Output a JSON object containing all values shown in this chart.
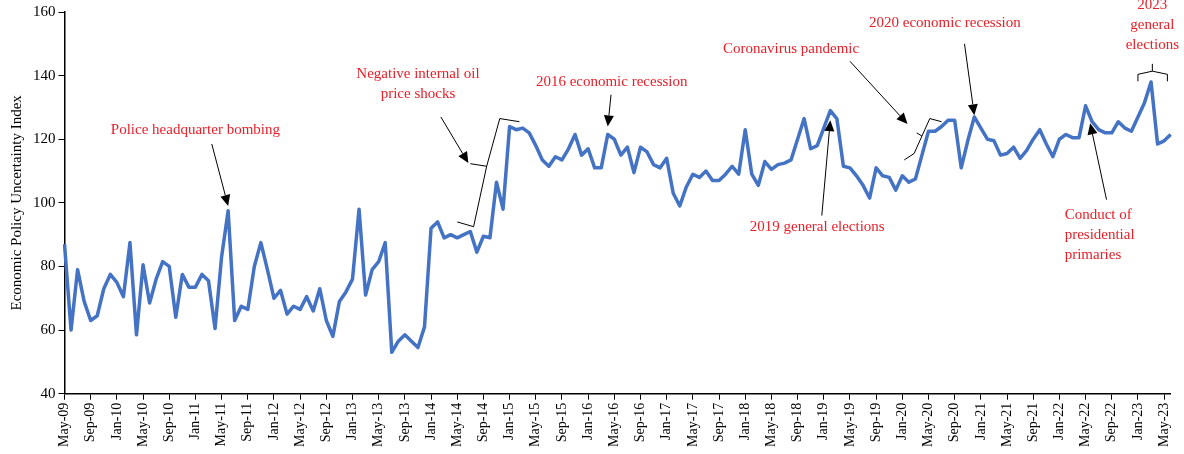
{
  "chart_data": {
    "type": "line",
    "ylabel": "Economic Policy Uncertainty Index",
    "categories": [
      "May-09",
      null,
      null,
      null,
      "Sep-09",
      null,
      null,
      null,
      "Jan-10",
      null,
      null,
      null,
      "May-10",
      null,
      null,
      null,
      "Sep-10",
      null,
      null,
      null,
      "Jan-11",
      null,
      null,
      null,
      "May-11",
      null,
      null,
      null,
      "Sep-11",
      null,
      null,
      null,
      "Jan-12",
      null,
      null,
      null,
      "May-12",
      null,
      null,
      null,
      "Sep-12",
      null,
      null,
      null,
      "Jan-13",
      null,
      null,
      null,
      "May-13",
      null,
      null,
      null,
      "Sep-13",
      null,
      null,
      null,
      "Jan-14",
      null,
      null,
      null,
      "May-14",
      null,
      null,
      null,
      "Sep-14",
      null,
      null,
      null,
      "Jan-15",
      null,
      null,
      null,
      "May-15",
      null,
      null,
      null,
      "Sep-15",
      null,
      null,
      null,
      "Jan-16",
      null,
      null,
      null,
      "May-16",
      null,
      null,
      null,
      "Sep-16",
      null,
      null,
      null,
      "Jan-17",
      null,
      null,
      null,
      "May-17",
      null,
      null,
      null,
      "Sep-17",
      null,
      null,
      null,
      "Jan-18",
      null,
      null,
      null,
      "May-18",
      null,
      null,
      null,
      "Sep-18",
      null,
      null,
      null,
      "Jan-19",
      null,
      null,
      null,
      "May-19",
      null,
      null,
      null,
      "Sep-19",
      null,
      null,
      null,
      "Jan-20",
      null,
      null,
      null,
      "May-20",
      null,
      null,
      null,
      "Sep-20",
      null,
      null,
      null,
      "Jan-21",
      null,
      null,
      null,
      "May-21",
      null,
      null,
      null,
      "Sep-21",
      null,
      null,
      null,
      "Jan-22",
      null,
      null,
      null,
      "May-22",
      null,
      null,
      null,
      "Sep-22",
      null,
      null,
      null,
      "Jan-23",
      null,
      null,
      null,
      "May-23",
      null
    ],
    "series": [
      {
        "color": "#4472c4",
        "values": [
          87,
          60,
          79,
          69,
          63,
          64.5,
          73,
          77.5,
          75,
          70.5,
          87.5,
          58.5,
          80.5,
          68.5,
          76,
          81.5,
          80,
          64,
          77.5,
          73.5,
          73.5,
          77.5,
          75.5,
          60.5,
          83,
          97.5,
          63,
          67.5,
          66.5,
          80,
          87.5,
          79,
          70,
          72.5,
          65,
          67.5,
          66.5,
          70.5,
          66,
          73,
          63,
          58,
          69,
          72,
          76,
          98,
          71,
          79,
          81.5,
          87.5,
          53,
          56.5,
          58.5,
          56.5,
          54.5,
          61,
          92,
          94,
          89,
          90,
          89,
          90,
          91,
          84.5,
          89.5,
          89,
          106.5,
          98,
          124,
          123,
          123.5,
          122,
          118,
          113.5,
          111.5,
          114.5,
          113.5,
          117,
          121.5,
          115,
          117,
          111,
          111,
          121.5,
          120,
          115,
          117.5,
          109.5,
          117.5,
          116,
          112,
          111,
          114,
          103,
          99,
          105,
          109,
          108,
          110,
          107,
          107,
          109,
          111.5,
          109,
          123,
          109,
          105.5,
          113,
          110.5,
          112,
          112.5,
          113.5,
          120,
          126.5,
          117,
          118,
          123.5,
          129,
          126.5,
          111.5,
          111,
          108.5,
          105.5,
          101.5,
          111,
          108.5,
          108,
          104,
          108.5,
          106.5,
          107.5,
          115,
          122.5,
          122.5,
          124,
          126,
          126,
          111,
          119.5,
          127,
          123.5,
          120,
          119.5,
          115,
          115.5,
          117.5,
          114,
          116.5,
          120,
          123,
          118.5,
          114.5,
          120,
          121.5,
          120.5,
          120.5,
          130.5,
          125.5,
          123,
          122,
          122,
          125.5,
          123.5,
          122.5,
          127,
          131.5,
          138,
          118.5,
          119.5,
          121.5
        ]
      }
    ],
    "ylim": [
      40,
      160
    ],
    "yticks": [
      40,
      60,
      80,
      100,
      120,
      140,
      160
    ],
    "annotations": [
      "Police headquarter bombing",
      "Negative internal oil\nprice shocks",
      "2016 economic recession",
      "Coronavirus pandemic",
      "2020 economic recession",
      "2019 general elections",
      "Conduct of\npresidential\nprimaries",
      "2023\ngeneral\nelections"
    ]
  }
}
